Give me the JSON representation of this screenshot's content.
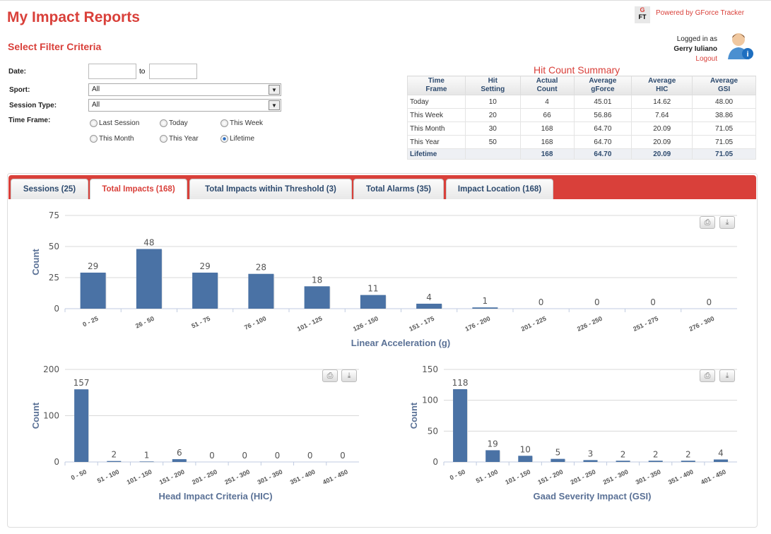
{
  "header": {
    "title": "My Impact Reports",
    "powered_by": "Powered by GForce Tracker",
    "logo_text": "GFT",
    "logged_in_as": "Logged in as",
    "user": "Gerry Iuliano",
    "logout": "Logout"
  },
  "filters": {
    "title": "Select Filter Criteria",
    "date_label": "Date:",
    "date_to": "to",
    "date_from_value": "",
    "date_to_value": "",
    "sport_label": "Sport:",
    "sport_value": "All",
    "session_type_label": "Session Type:",
    "session_type_value": "All",
    "time_frame_label": "Time Frame:",
    "time_frames": [
      {
        "label": "Last Session",
        "checked": false
      },
      {
        "label": "Today",
        "checked": false
      },
      {
        "label": "This Week",
        "checked": false
      },
      {
        "label": "This Month",
        "checked": false
      },
      {
        "label": "This Year",
        "checked": false
      },
      {
        "label": "Lifetime",
        "checked": true
      }
    ]
  },
  "summary": {
    "title": "Hit Count Summary",
    "headers": [
      [
        "Time",
        "Frame"
      ],
      [
        "Hit",
        "Setting"
      ],
      [
        "Actual",
        "Count"
      ],
      [
        "Average",
        "gForce"
      ],
      [
        "Average",
        "HIC"
      ],
      [
        "Average",
        "GSI"
      ]
    ],
    "rows": [
      [
        "Today",
        "10",
        "4",
        "45.01",
        "14.62",
        "48.00"
      ],
      [
        "This Week",
        "20",
        "66",
        "56.86",
        "7.64",
        "38.86"
      ],
      [
        "This Month",
        "30",
        "168",
        "64.70",
        "20.09",
        "71.05"
      ],
      [
        "This Year",
        "50",
        "168",
        "64.70",
        "20.09",
        "71.05"
      ],
      [
        "Lifetime",
        "",
        "168",
        "64.70",
        "20.09",
        "71.05"
      ]
    ]
  },
  "tabs": [
    {
      "label": "Sessions (25)",
      "active": false
    },
    {
      "label": "Total Impacts (168)",
      "active": true
    },
    {
      "label": "Total Impacts within Threshold (3)",
      "active": false
    },
    {
      "label": "Total Alarms (35)",
      "active": false
    },
    {
      "label": "Impact Location (168)",
      "active": false
    }
  ],
  "colors": {
    "accent": "#d9403a",
    "bar": "#4a72a5",
    "title_text": "#2d4a6e"
  },
  "chart_data": [
    {
      "type": "bar",
      "xlabel": "Linear Acceleration (g)",
      "ylabel": "Count",
      "ylim": [
        0,
        75
      ],
      "yticks": [
        0,
        25,
        50,
        75
      ],
      "grid": true,
      "categories": [
        "0 - 25",
        "26 - 50",
        "51 - 75",
        "76 - 100",
        "101 - 125",
        "126 - 150",
        "151 - 175",
        "176 - 200",
        "201 - 225",
        "226 - 250",
        "251 - 275",
        "276 - 300"
      ],
      "values": [
        29,
        48,
        29,
        28,
        18,
        11,
        4,
        1,
        0,
        0,
        0,
        0
      ]
    },
    {
      "type": "bar",
      "xlabel": "Head Impact Criteria (HIC)",
      "ylabel": "Count",
      "ylim": [
        0,
        200
      ],
      "yticks": [
        0,
        100,
        200
      ],
      "grid": true,
      "categories": [
        "0 - 50",
        "51 - 100",
        "101 - 150",
        "151 - 200",
        "201 - 250",
        "251 - 300",
        "301 - 350",
        "351 - 400",
        "401 - 450"
      ],
      "values": [
        157,
        2,
        1,
        6,
        0,
        0,
        0,
        0,
        0
      ]
    },
    {
      "type": "bar",
      "xlabel": "Gaad Severity Impact (GSI)",
      "ylabel": "Count",
      "ylim": [
        0,
        150
      ],
      "yticks": [
        0,
        50,
        100,
        150
      ],
      "grid": true,
      "categories": [
        "0 - 50",
        "51 - 100",
        "101 - 150",
        "151 - 200",
        "201 - 250",
        "251 - 300",
        "301 - 350",
        "351 - 400",
        "401 - 450"
      ],
      "values": [
        118,
        19,
        10,
        5,
        3,
        2,
        2,
        2,
        4
      ]
    }
  ]
}
